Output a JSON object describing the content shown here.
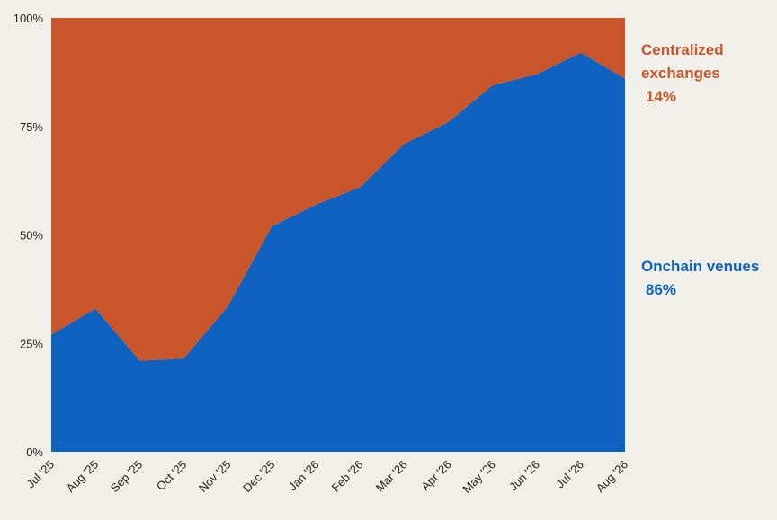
{
  "chart_data": {
    "type": "area",
    "stacked": true,
    "normalized": true,
    "categories": [
      "Jul '25",
      "Aug '25",
      "Sep '25",
      "Oct '25",
      "Nov '25",
      "Dec '25",
      "Jan '26",
      "Feb '26",
      "Mar '26",
      "Apr '26",
      "May '26",
      "Jun '26",
      "Jul '26",
      "Aug '26"
    ],
    "yticks": [
      "0%",
      "25%",
      "50%",
      "75%",
      "100%"
    ],
    "ylim": [
      0,
      100
    ],
    "grid": false,
    "legend_position": "right",
    "series": [
      {
        "name": "Onchain venues",
        "label_value": "86%",
        "color": "#0f62bf",
        "values": [
          27,
          33,
          21,
          21.5,
          33.5,
          52,
          57,
          61,
          71,
          76,
          84.5,
          87,
          92,
          86
        ]
      },
      {
        "name": "Centralized exchanges",
        "label_value": "14%",
        "color": "#c9552a",
        "values": [
          73,
          67,
          79,
          78.5,
          66.5,
          48,
          43,
          39,
          29,
          24,
          15.5,
          13,
          8,
          14
        ]
      }
    ]
  },
  "legend": {
    "cex_line1": "Centralized",
    "cex_line2": "exchanges",
    "cex_pct": "14%",
    "onchain_name": "Onchain venues",
    "onchain_pct": "86%"
  }
}
